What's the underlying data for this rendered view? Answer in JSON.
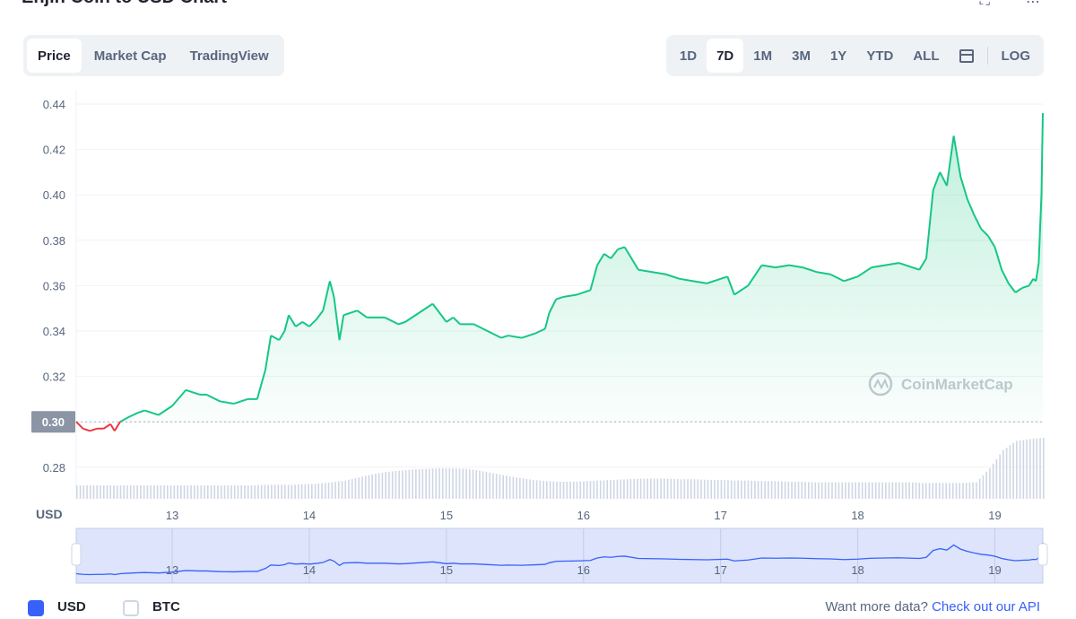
{
  "header": {
    "title": "Enjin Coin to USD Chart"
  },
  "tabs": [
    "Price",
    "Market Cap",
    "TradingView"
  ],
  "active_tab": "Price",
  "ranges": [
    "1D",
    "7D",
    "1M",
    "3M",
    "1Y",
    "YTD",
    "ALL"
  ],
  "active_range": "7D",
  "log_label": "LOG",
  "watermark": "CoinMarketCap",
  "currency_label": "USD",
  "bottom": {
    "usd": "USD",
    "btc": "BTC",
    "more_text": "Want more data?",
    "more_link": "Check out our API"
  },
  "colors": {
    "up": "#16c784",
    "down": "#ea3943",
    "nav_line": "#3861fb",
    "accent": "#3861fb"
  },
  "chart_data": {
    "type": "area",
    "ylim": [
      0.27,
      0.445
    ],
    "yticks": [
      "0.44",
      "0.42",
      "0.40",
      "0.38",
      "0.36",
      "0.34",
      "0.32",
      "0.30",
      "0.28"
    ],
    "xticks": [
      "13",
      "14",
      "15",
      "16",
      "17",
      "18",
      "19"
    ],
    "baseline": 0.3,
    "baseline_label": "0.30",
    "xlim": [
      12.3,
      19.35
    ],
    "series": [
      {
        "x": [
          12.3,
          12.35,
          12.4,
          12.45,
          12.5,
          12.55,
          12.58,
          12.62,
          12.68,
          12.75,
          12.8,
          12.9,
          13.0,
          13.1,
          13.15,
          13.2,
          13.25,
          13.35,
          13.45,
          13.55,
          13.62,
          13.68,
          13.72,
          13.78,
          13.82,
          13.85,
          13.9,
          13.95,
          14.0,
          14.05,
          14.1,
          14.15,
          14.18,
          14.22,
          14.25,
          14.35,
          14.42,
          14.45,
          14.55,
          14.65,
          14.7,
          14.8,
          14.9,
          15.0,
          15.05,
          15.1,
          15.2,
          15.3,
          15.4,
          15.45,
          15.55,
          15.65,
          15.72,
          15.75,
          15.8,
          15.85,
          15.95,
          16.05,
          16.1,
          16.15,
          16.2,
          16.25,
          16.3,
          16.4,
          16.5,
          16.6,
          16.7,
          16.8,
          16.9,
          17.0,
          17.05,
          17.1,
          17.2,
          17.3,
          17.4,
          17.5,
          17.6,
          17.7,
          17.8,
          17.9,
          18.0,
          18.1,
          18.2,
          18.3,
          18.4,
          18.45,
          18.5,
          18.55,
          18.6,
          18.65,
          18.7,
          18.75,
          18.8,
          18.85,
          18.9,
          18.95,
          19.0,
          19.05,
          19.1,
          19.15,
          19.2,
          19.25,
          19.28,
          19.3,
          19.32,
          19.34,
          19.35
        ],
        "y": [
          0.3,
          0.297,
          0.296,
          0.297,
          0.297,
          0.299,
          0.296,
          0.3,
          0.302,
          0.304,
          0.305,
          0.303,
          0.307,
          0.314,
          0.313,
          0.312,
          0.312,
          0.309,
          0.308,
          0.31,
          0.31,
          0.323,
          0.338,
          0.336,
          0.34,
          0.347,
          0.342,
          0.344,
          0.342,
          0.345,
          0.349,
          0.362,
          0.355,
          0.336,
          0.347,
          0.349,
          0.346,
          0.346,
          0.346,
          0.343,
          0.344,
          0.348,
          0.352,
          0.344,
          0.346,
          0.343,
          0.343,
          0.34,
          0.337,
          0.338,
          0.337,
          0.339,
          0.341,
          0.348,
          0.354,
          0.355,
          0.356,
          0.358,
          0.369,
          0.374,
          0.372,
          0.376,
          0.377,
          0.367,
          0.366,
          0.365,
          0.363,
          0.362,
          0.361,
          0.363,
          0.364,
          0.356,
          0.36,
          0.369,
          0.368,
          0.369,
          0.368,
          0.366,
          0.365,
          0.362,
          0.364,
          0.368,
          0.369,
          0.37,
          0.368,
          0.367,
          0.372,
          0.402,
          0.41,
          0.404,
          0.426,
          0.408,
          0.398,
          0.391,
          0.385,
          0.382,
          0.377,
          0.367,
          0.361,
          0.357,
          0.359,
          0.36,
          0.363,
          0.362,
          0.37,
          0.4,
          0.436
        ]
      }
    ],
    "volume": [
      0.22,
      0.22,
      0.22,
      0.22,
      0.22,
      0.22,
      0.22,
      0.22,
      0.22,
      0.22,
      0.22,
      0.22,
      0.22,
      0.22,
      0.23,
      0.23,
      0.23,
      0.24,
      0.25,
      0.27,
      0.3,
      0.35,
      0.4,
      0.44,
      0.46,
      0.48,
      0.49,
      0.5,
      0.5,
      0.49,
      0.46,
      0.42,
      0.38,
      0.34,
      0.31,
      0.29,
      0.28,
      0.28,
      0.29,
      0.3,
      0.31,
      0.32,
      0.33,
      0.33,
      0.33,
      0.32,
      0.32,
      0.31,
      0.31,
      0.3,
      0.3,
      0.29,
      0.29,
      0.28,
      0.28,
      0.27,
      0.27,
      0.27,
      0.27,
      0.27,
      0.27,
      0.27,
      0.27,
      0.26,
      0.26,
      0.26,
      0.26,
      0.27,
      0.5,
      0.8,
      0.95,
      0.98,
      1.0
    ]
  }
}
